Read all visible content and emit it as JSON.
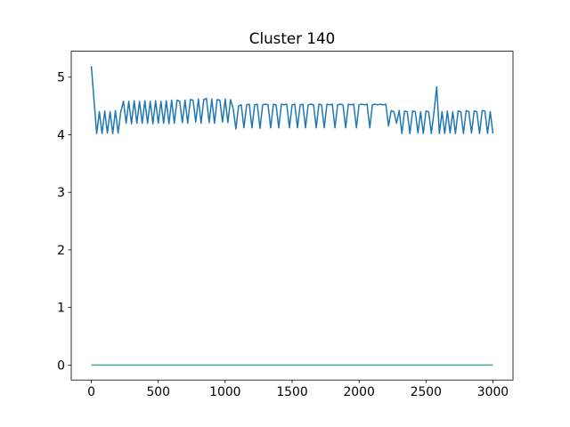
{
  "chart_data": {
    "type": "line",
    "title": "Cluster 140",
    "xlim": [
      -150,
      3150
    ],
    "xticks": [
      0,
      500,
      1000,
      1500,
      2000,
      2500,
      3000
    ],
    "ylim": [
      -0.26,
      5.45
    ],
    "yticks": [
      0,
      1,
      2,
      3,
      4,
      5
    ],
    "series": [
      {
        "color": "#1f77b4",
        "x": [
          0,
          20,
          40,
          60,
          80,
          100,
          120,
          140,
          160,
          180,
          200,
          220,
          240,
          260,
          280,
          300,
          320,
          340,
          360,
          380,
          400,
          420,
          440,
          460,
          480,
          500,
          520,
          540,
          560,
          580,
          600,
          620,
          640,
          660,
          680,
          700,
          720,
          740,
          760,
          780,
          800,
          820,
          840,
          860,
          880,
          900,
          920,
          940,
          960,
          980,
          1000,
          1020,
          1040,
          1060,
          1080,
          1100,
          1120,
          1140,
          1160,
          1180,
          1200,
          1220,
          1240,
          1260,
          1280,
          1300,
          1320,
          1340,
          1360,
          1380,
          1400,
          1420,
          1440,
          1460,
          1480,
          1500,
          1520,
          1540,
          1560,
          1580,
          1600,
          1620,
          1640,
          1660,
          1680,
          1700,
          1720,
          1740,
          1760,
          1780,
          1800,
          1820,
          1840,
          1860,
          1880,
          1900,
          1920,
          1940,
          1960,
          1980,
          2000,
          2020,
          2040,
          2060,
          2080,
          2100,
          2120,
          2140,
          2160,
          2180,
          2200,
          2220,
          2240,
          2260,
          2280,
          2300,
          2320,
          2340,
          2360,
          2380,
          2400,
          2420,
          2440,
          2460,
          2480,
          2500,
          2520,
          2540,
          2560,
          2580,
          2600,
          2620,
          2640,
          2660,
          2680,
          2700,
          2720,
          2740,
          2760,
          2780,
          2800,
          2820,
          2840,
          2860,
          2880,
          2900,
          2920,
          2940,
          2960,
          2980,
          3000
        ],
        "values": [
          5.19,
          4.6,
          4.02,
          4.4,
          4.02,
          4.41,
          4.03,
          4.4,
          4.02,
          4.42,
          4.03,
          4.4,
          4.58,
          4.2,
          4.58,
          4.19,
          4.59,
          4.2,
          4.58,
          4.2,
          4.59,
          4.2,
          4.58,
          4.19,
          4.59,
          4.2,
          4.58,
          4.2,
          4.59,
          4.19,
          4.6,
          4.2,
          4.6,
          4.58,
          4.21,
          4.6,
          4.2,
          4.61,
          4.6,
          4.22,
          4.62,
          4.2,
          4.61,
          4.63,
          4.21,
          4.62,
          4.2,
          4.61,
          4.6,
          4.22,
          4.62,
          4.21,
          4.61,
          4.45,
          4.1,
          4.5,
          4.52,
          4.12,
          4.52,
          4.53,
          4.12,
          4.52,
          4.53,
          4.11,
          4.52,
          4.53,
          4.52,
          4.12,
          4.53,
          4.52,
          4.12,
          4.53,
          4.52,
          4.53,
          4.12,
          4.52,
          4.53,
          4.12,
          4.52,
          4.53,
          4.12,
          4.52,
          4.53,
          4.52,
          4.12,
          4.53,
          4.52,
          4.12,
          4.53,
          4.52,
          4.53,
          4.12,
          4.52,
          4.53,
          4.52,
          4.12,
          4.53,
          4.52,
          4.53,
          4.12,
          4.52,
          4.53,
          4.52,
          4.53,
          4.12,
          4.52,
          4.53,
          4.52,
          4.53,
          4.52,
          4.53,
          4.15,
          4.42,
          4.4,
          4.2,
          4.42,
          4.02,
          4.41,
          4.4,
          4.02,
          4.41,
          4.4,
          4.03,
          4.4,
          4.02,
          4.41,
          4.4,
          4.02,
          4.4,
          4.83,
          4.02,
          4.4,
          4.02,
          4.41,
          4.03,
          4.4,
          4.02,
          4.41,
          4.4,
          4.02,
          4.42,
          4.4,
          4.03,
          4.41,
          4.4,
          4.02,
          4.42,
          4.41,
          4.02,
          4.4,
          4.02
        ]
      },
      {
        "color": "#3ba99c",
        "x": [
          0,
          3000
        ],
        "values": [
          0,
          0
        ]
      }
    ]
  }
}
